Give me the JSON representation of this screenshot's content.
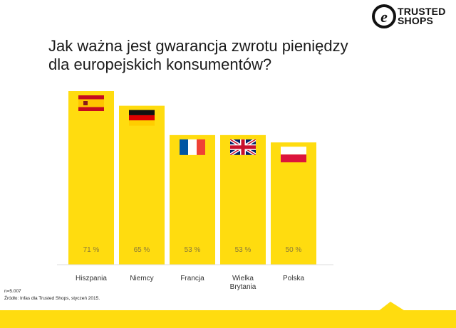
{
  "header": {
    "title_line1": "Jak ważna jest gwarancja zwrotu pieniędzy",
    "title_line2": "dla europejskich konsumentów?",
    "logo_line1": "TRUSTED",
    "logo_line2": "SHOPS",
    "logo_glyph": "e"
  },
  "notes": {
    "sample": "n=5.007",
    "source": "Źródło: Infas dla Trusted Shops, styczeń 2015."
  },
  "colors": {
    "bar": "#ffdc0f",
    "label": "#8a7a3a",
    "axis_text": "#333333"
  },
  "chart_data": {
    "type": "bar",
    "title": "Jak ważna jest gwarancja zwrotu pieniędzy dla europejskich konsumentów?",
    "categories": [
      "Hiszpania",
      "Niemcy",
      "Francja",
      "Wielka Brytania",
      "Polska"
    ],
    "category_lines": [
      [
        "Hiszpania"
      ],
      [
        "Niemcy"
      ],
      [
        "Francja"
      ],
      [
        "Wielka",
        "Brytania"
      ],
      [
        "Polska"
      ]
    ],
    "flags": [
      "spain-flag-icon",
      "germany-flag-icon",
      "france-flag-icon",
      "uk-flag-icon",
      "poland-flag-icon"
    ],
    "values": [
      71,
      65,
      53,
      53,
      50
    ],
    "value_labels": [
      "71 %",
      "65 %",
      "53 %",
      "53 %",
      "50 %"
    ],
    "unit": "%",
    "ylim": [
      0,
      71
    ],
    "grid": false,
    "legend": "none"
  }
}
